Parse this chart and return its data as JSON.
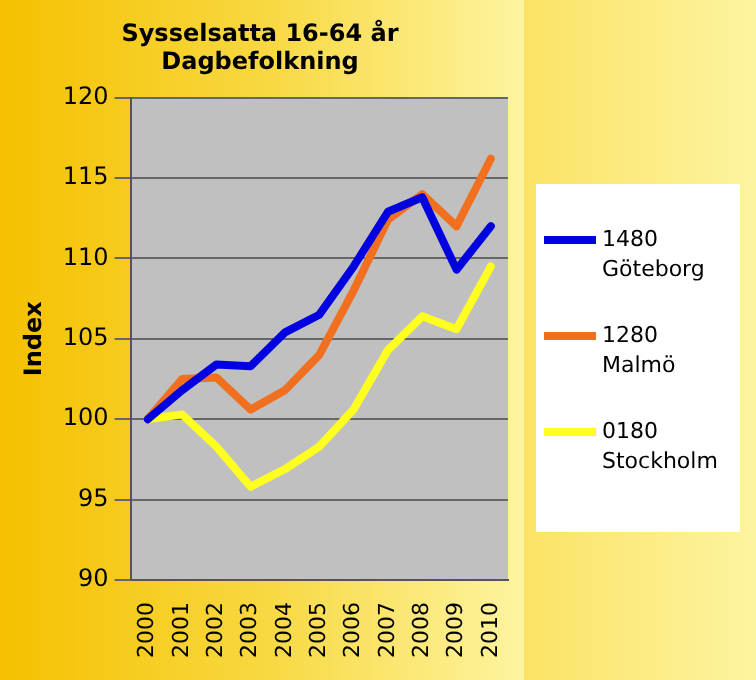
{
  "chart_data": {
    "type": "line",
    "title": "Sysselsatta 16-64 år\nDagbefolkning",
    "ylabel": "Index",
    "categories": [
      "2000",
      "2001",
      "2002",
      "2003",
      "2004",
      "2005",
      "2006",
      "2007",
      "2008",
      "2009",
      "2010"
    ],
    "series": [
      {
        "name": "1480 Göteborg",
        "color": "#0000e0",
        "values": [
          100,
          101.8,
          103.4,
          103.3,
          105.4,
          106.5,
          109.5,
          112.9,
          113.8,
          109.3,
          112.0
        ]
      },
      {
        "name": "1280 Malmö",
        "color": "#f07020",
        "values": [
          100,
          102.5,
          102.6,
          100.6,
          101.8,
          104.0,
          108.0,
          112.4,
          114.0,
          112.0,
          116.2
        ]
      },
      {
        "name": "0180 Stockholm",
        "color": "#ffff20",
        "values": [
          100,
          100.3,
          98.3,
          95.8,
          96.9,
          98.3,
          100.6,
          104.3,
          106.4,
          105.6,
          109.5
        ]
      }
    ],
    "ylim": [
      90,
      120
    ],
    "yticks": [
      90,
      95,
      100,
      105,
      110,
      115,
      120
    ],
    "grid": "y",
    "legend": "right",
    "marker": "none",
    "line_style": "solid"
  }
}
